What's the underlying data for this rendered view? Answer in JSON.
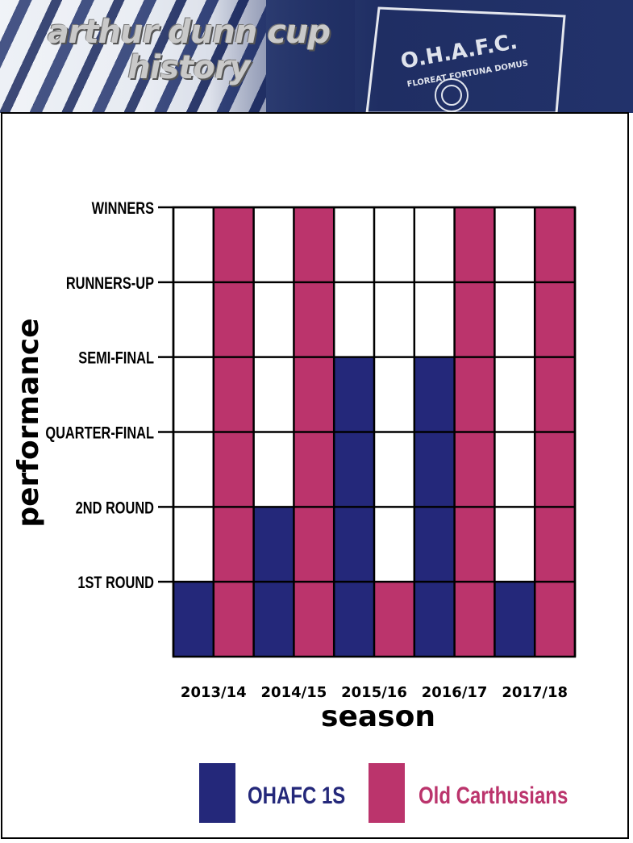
{
  "header": {
    "title": "arthur dunn cup history",
    "crest_icon": "club-crest-icon",
    "crest_lines": [
      "O.H.A.F.C.",
      "FLOREAT FORTUNA DOMUS"
    ]
  },
  "chart_data": {
    "type": "bar",
    "title": "",
    "xlabel": "season",
    "ylabel": "performance",
    "categories": [
      "2013/14",
      "2014/15",
      "2015/16",
      "2016/17",
      "2017/18"
    ],
    "levels": [
      "1ST ROUND",
      "2ND ROUND",
      "QUARTER-FINAL",
      "SEMI-FINAL",
      "RUNNERS-UP",
      "WINNERS"
    ],
    "ylim": [
      0,
      6
    ],
    "grid": true,
    "legend": "bottom",
    "series": [
      {
        "name": "OHAFC 1S",
        "color": "#24287a",
        "values": [
          1,
          2,
          4,
          4,
          1
        ]
      },
      {
        "name": "Old Carthusians",
        "color": "#bb346c",
        "values": [
          6,
          6,
          1,
          6,
          6
        ]
      }
    ]
  }
}
